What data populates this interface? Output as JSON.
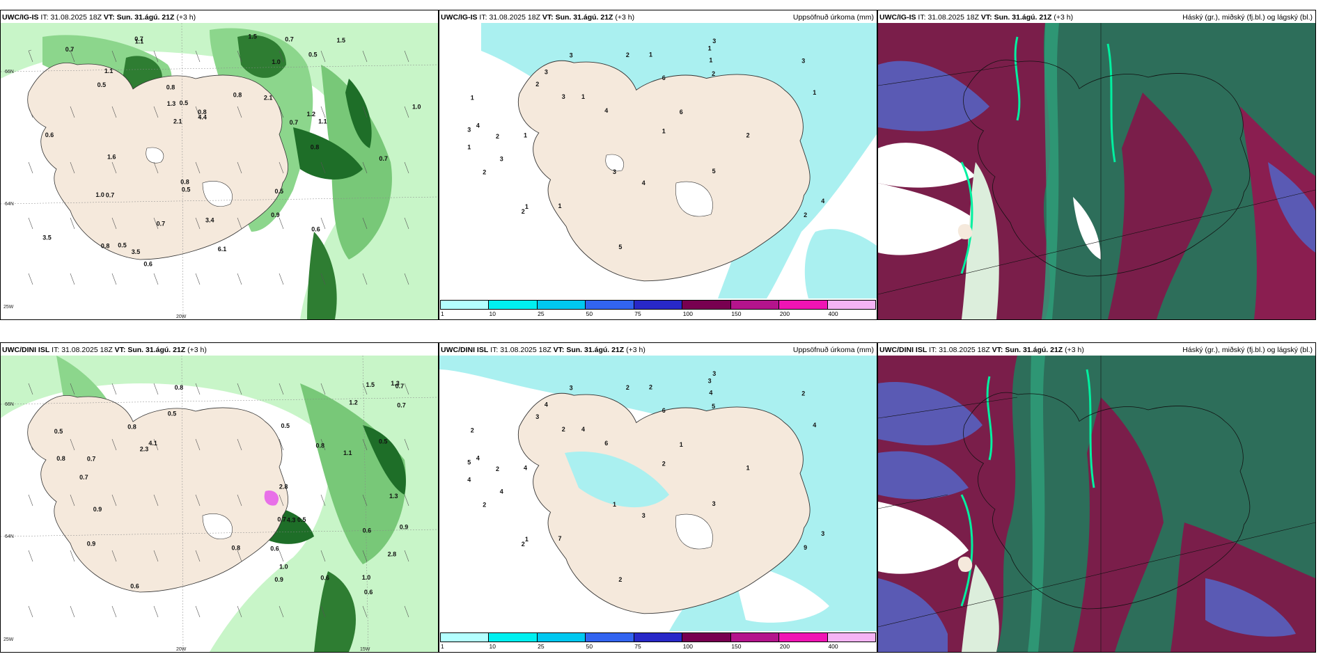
{
  "panels": {
    "p1": {
      "model": "UWC/IG-IS",
      "it_label": "IT:",
      "it": "31.08.2025 18Z",
      "vt_label": "VT:",
      "vt": "Sun. 31.ágú. 21Z",
      "lead": "(+3 h)",
      "right": ""
    },
    "p2": {
      "model": "UWC/IG-IS",
      "it_label": "IT:",
      "it": "31.08.2025 18Z",
      "vt_label": "VT:",
      "vt": "Sun. 31.ágú. 21Z",
      "lead": "(+3 h)",
      "right": "Uppsöfnuð úrkoma (mm)"
    },
    "p3": {
      "model": "UWC/IG-IS",
      "it_label": "IT:",
      "it": "31.08.2025 18Z",
      "vt_label": "VT:",
      "vt": "Sun. 31.ágú. 21Z",
      "lead": "(+3 h)",
      "right": "Háský (gr.), miðský (fj.bl.) og lágský (bl.)"
    },
    "p4": {
      "model": "UWC/DINI ISL",
      "it_label": "IT:",
      "it": "31.08.2025 18Z",
      "vt_label": "VT:",
      "vt": "Sun. 31.ágú. 21Z",
      "lead": "(+3 h)",
      "right": ""
    },
    "p5": {
      "model": "UWC/DINI ISL",
      "it_label": "IT:",
      "it": "31.08.2025 18Z",
      "vt_label": "VT:",
      "vt": "Sun. 31.ágú. 21Z",
      "lead": "(+3 h)",
      "right": "Uppsöfnuð úrkoma (mm)"
    },
    "p6": {
      "model": "UWC/DINI ISL",
      "it_label": "IT:",
      "it": "31.08.2025 18Z",
      "vt_label": "VT:",
      "vt": "Sun. 31.ágú. 21Z",
      "lead": "(+3 h)",
      "right": "Háský (gr.), miðský (fj.bl.) og lágský (bl.)"
    }
  },
  "axis_labels": {
    "lat66": "66N",
    "lat64": "64N",
    "lon25": "25W",
    "lon20": "20W",
    "lon15": "15W"
  },
  "colorbar": {
    "ticks": [
      "1",
      "10",
      "25",
      "50",
      "75",
      "100",
      "150",
      "200",
      "400"
    ],
    "colors": [
      "#b4ffff",
      "#00f0f0",
      "#00c8f0",
      "#3264f0",
      "#2828c8",
      "#780050",
      "#b4148c",
      "#f014b4",
      "#f5b4f5"
    ]
  },
  "colors": {
    "land": "#f5e9dc",
    "green_light": "#c8f5c8",
    "green_mid": "#78c878",
    "green_dark": "#1e6e28",
    "precip": "#aaf0f0",
    "cloud_high": "#2d6e5a",
    "cloud_mid": "#7a1e4a",
    "cloud_low": "#5a5ab4"
  },
  "labels": {
    "p1": [
      "0.6",
      "0.7",
      "1.1",
      "0.7",
      "0.8",
      "1.1",
      "3.4",
      "2.1",
      "0.7",
      "0.7",
      "1.6",
      "2.1",
      "1.5",
      "0.8",
      "1.0",
      "1.0",
      "0.7",
      "0.5",
      "1.0",
      "0.5",
      "0.8",
      "3.5",
      "4.4",
      "6.1",
      "1.2",
      "0.5",
      "3.5",
      "0.6",
      "0.5",
      "0.7",
      "0.9",
      "1.3",
      "0.5",
      "0.8",
      "0.8",
      "1.5",
      "0.5",
      "0.6",
      "0.8",
      "0.7",
      "1.1"
    ],
    "p2": [
      "1",
      "1",
      "2",
      "4",
      "5",
      "3",
      "2",
      "1",
      "3",
      "6",
      "1",
      "3",
      "2",
      "1",
      "4",
      "4",
      "1",
      "1",
      "2",
      "6",
      "3",
      "4",
      "2",
      "1",
      "3",
      "5",
      "1",
      "2",
      "3",
      "2",
      "3",
      "3",
      "2",
      "1",
      "1"
    ],
    "p4": [
      "0.5",
      "0.8",
      "0.6",
      "0.6",
      "0.7",
      "1.1",
      "0.9",
      "0.7",
      "0.6",
      "1.0",
      "0.7",
      "0.8",
      "0.5",
      "0.5",
      "2.3",
      "2.8",
      "4.3",
      "4.1",
      "0.7",
      "1.2",
      "2.8",
      "0.8",
      "1.5",
      "0.5",
      "0.9",
      "0.9",
      "1.0",
      "0.7",
      "1.3",
      "0.9",
      "0.8",
      "0.6",
      "1.3",
      "0.6",
      "0.8",
      "0.5"
    ],
    "p5": [
      "1",
      "2",
      "2",
      "3",
      "3",
      "4",
      "5",
      "4",
      "4",
      "1",
      "4",
      "1",
      "2",
      "4",
      "3",
      "6",
      "7",
      "3",
      "9",
      "6",
      "3",
      "4",
      "2",
      "4",
      "5",
      "2",
      "4",
      "3",
      "3",
      "2",
      "2",
      "2",
      "1",
      "2",
      "2"
    ]
  }
}
